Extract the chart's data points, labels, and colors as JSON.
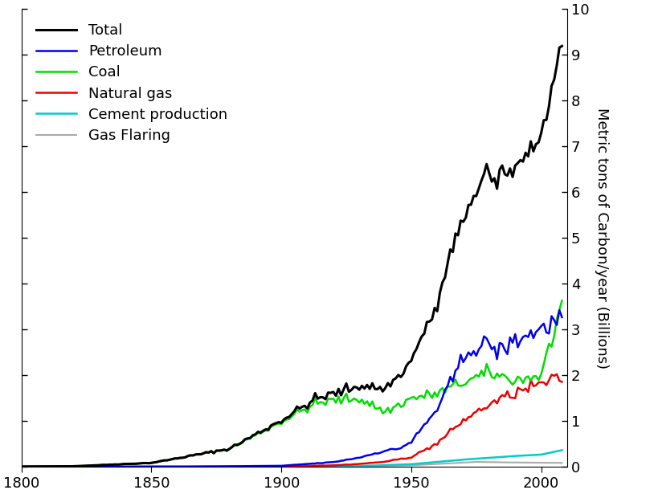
{
  "title": "",
  "ylabel_right": "Metric tons of Carbon/year (Billions)",
  "xlim": [
    1800,
    2010
  ],
  "ylim": [
    0,
    10
  ],
  "yticks": [
    0,
    1,
    2,
    3,
    4,
    5,
    6,
    7,
    8,
    9,
    10
  ],
  "xticks": [
    1800,
    1850,
    1900,
    1950,
    2000
  ],
  "background_color": "none",
  "series": {
    "Total": {
      "color": "#000000",
      "linewidth": 2.2
    },
    "Petroleum": {
      "color": "#0000ee",
      "linewidth": 1.8
    },
    "Coal": {
      "color": "#00dd00",
      "linewidth": 1.8
    },
    "Natural gas": {
      "color": "#ee0000",
      "linewidth": 1.8
    },
    "Cement production": {
      "color": "#00cccc",
      "linewidth": 1.8
    },
    "Gas Flaring": {
      "color": "#aaaaaa",
      "linewidth": 1.5
    }
  },
  "legend_fontsize": 13,
  "tick_fontsize": 13,
  "ylabel_fontsize": 13
}
